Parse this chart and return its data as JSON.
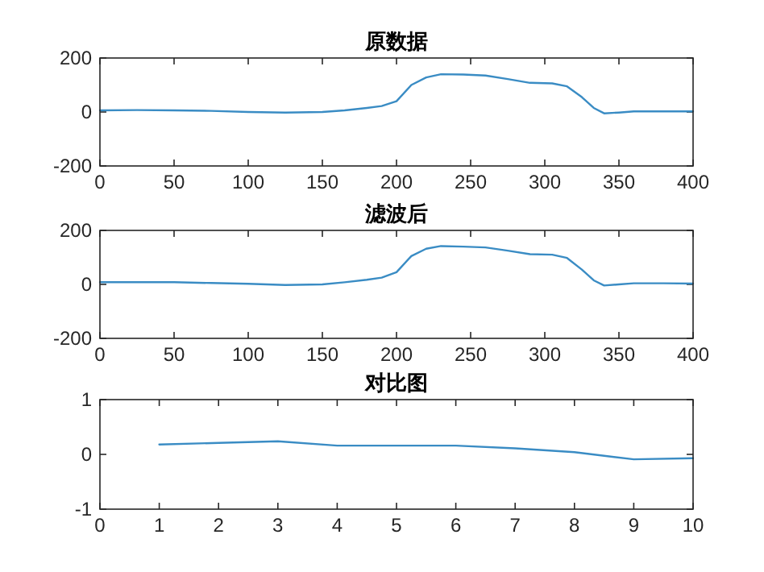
{
  "chart_data": [
    {
      "type": "line",
      "title": "原数据",
      "xlim": [
        0,
        400
      ],
      "ylim": [
        -200,
        200
      ],
      "xticks": [
        0,
        50,
        100,
        150,
        200,
        250,
        300,
        350,
        400
      ],
      "yticks": [
        -200,
        0,
        200
      ],
      "color": "#3a8cc4",
      "x": [
        0,
        25,
        50,
        75,
        100,
        125,
        150,
        165,
        180,
        190,
        200,
        210,
        220,
        230,
        245,
        260,
        275,
        290,
        305,
        315,
        325,
        333,
        340,
        350,
        360,
        380,
        400
      ],
      "values": [
        6,
        7,
        6,
        4,
        0,
        -2,
        0,
        6,
        15,
        22,
        40,
        100,
        128,
        140,
        139,
        135,
        122,
        108,
        106,
        95,
        55,
        15,
        -5,
        -2,
        2,
        2,
        2
      ]
    },
    {
      "type": "line",
      "title": "滤波后",
      "xlim": [
        0,
        400
      ],
      "ylim": [
        -200,
        200
      ],
      "xticks": [
        0,
        50,
        100,
        150,
        200,
        250,
        300,
        350,
        400
      ],
      "yticks": [
        -200,
        0,
        200
      ],
      "color": "#3a8cc4",
      "x": [
        0,
        25,
        50,
        75,
        100,
        125,
        150,
        165,
        180,
        190,
        200,
        210,
        220,
        230,
        245,
        260,
        275,
        290,
        305,
        315,
        325,
        333,
        340,
        350,
        360,
        380,
        400
      ],
      "values": [
        8,
        8,
        8,
        5,
        2,
        -2,
        0,
        8,
        17,
        25,
        45,
        105,
        132,
        142,
        140,
        137,
        125,
        112,
        110,
        98,
        55,
        15,
        -4,
        0,
        4,
        4,
        3
      ]
    },
    {
      "type": "line",
      "title": "对比图",
      "xlim": [
        0,
        10
      ],
      "ylim": [
        -1,
        1
      ],
      "xticks": [
        0,
        1,
        2,
        3,
        4,
        5,
        6,
        7,
        8,
        9,
        10
      ],
      "yticks": [
        -1,
        0,
        1
      ],
      "color": "#3a8cc4",
      "x": [
        1,
        2,
        3,
        4,
        5,
        6,
        7,
        8,
        9,
        10
      ],
      "values": [
        0.18,
        0.21,
        0.24,
        0.16,
        0.16,
        0.16,
        0.11,
        0.04,
        -0.09,
        -0.07
      ]
    }
  ]
}
